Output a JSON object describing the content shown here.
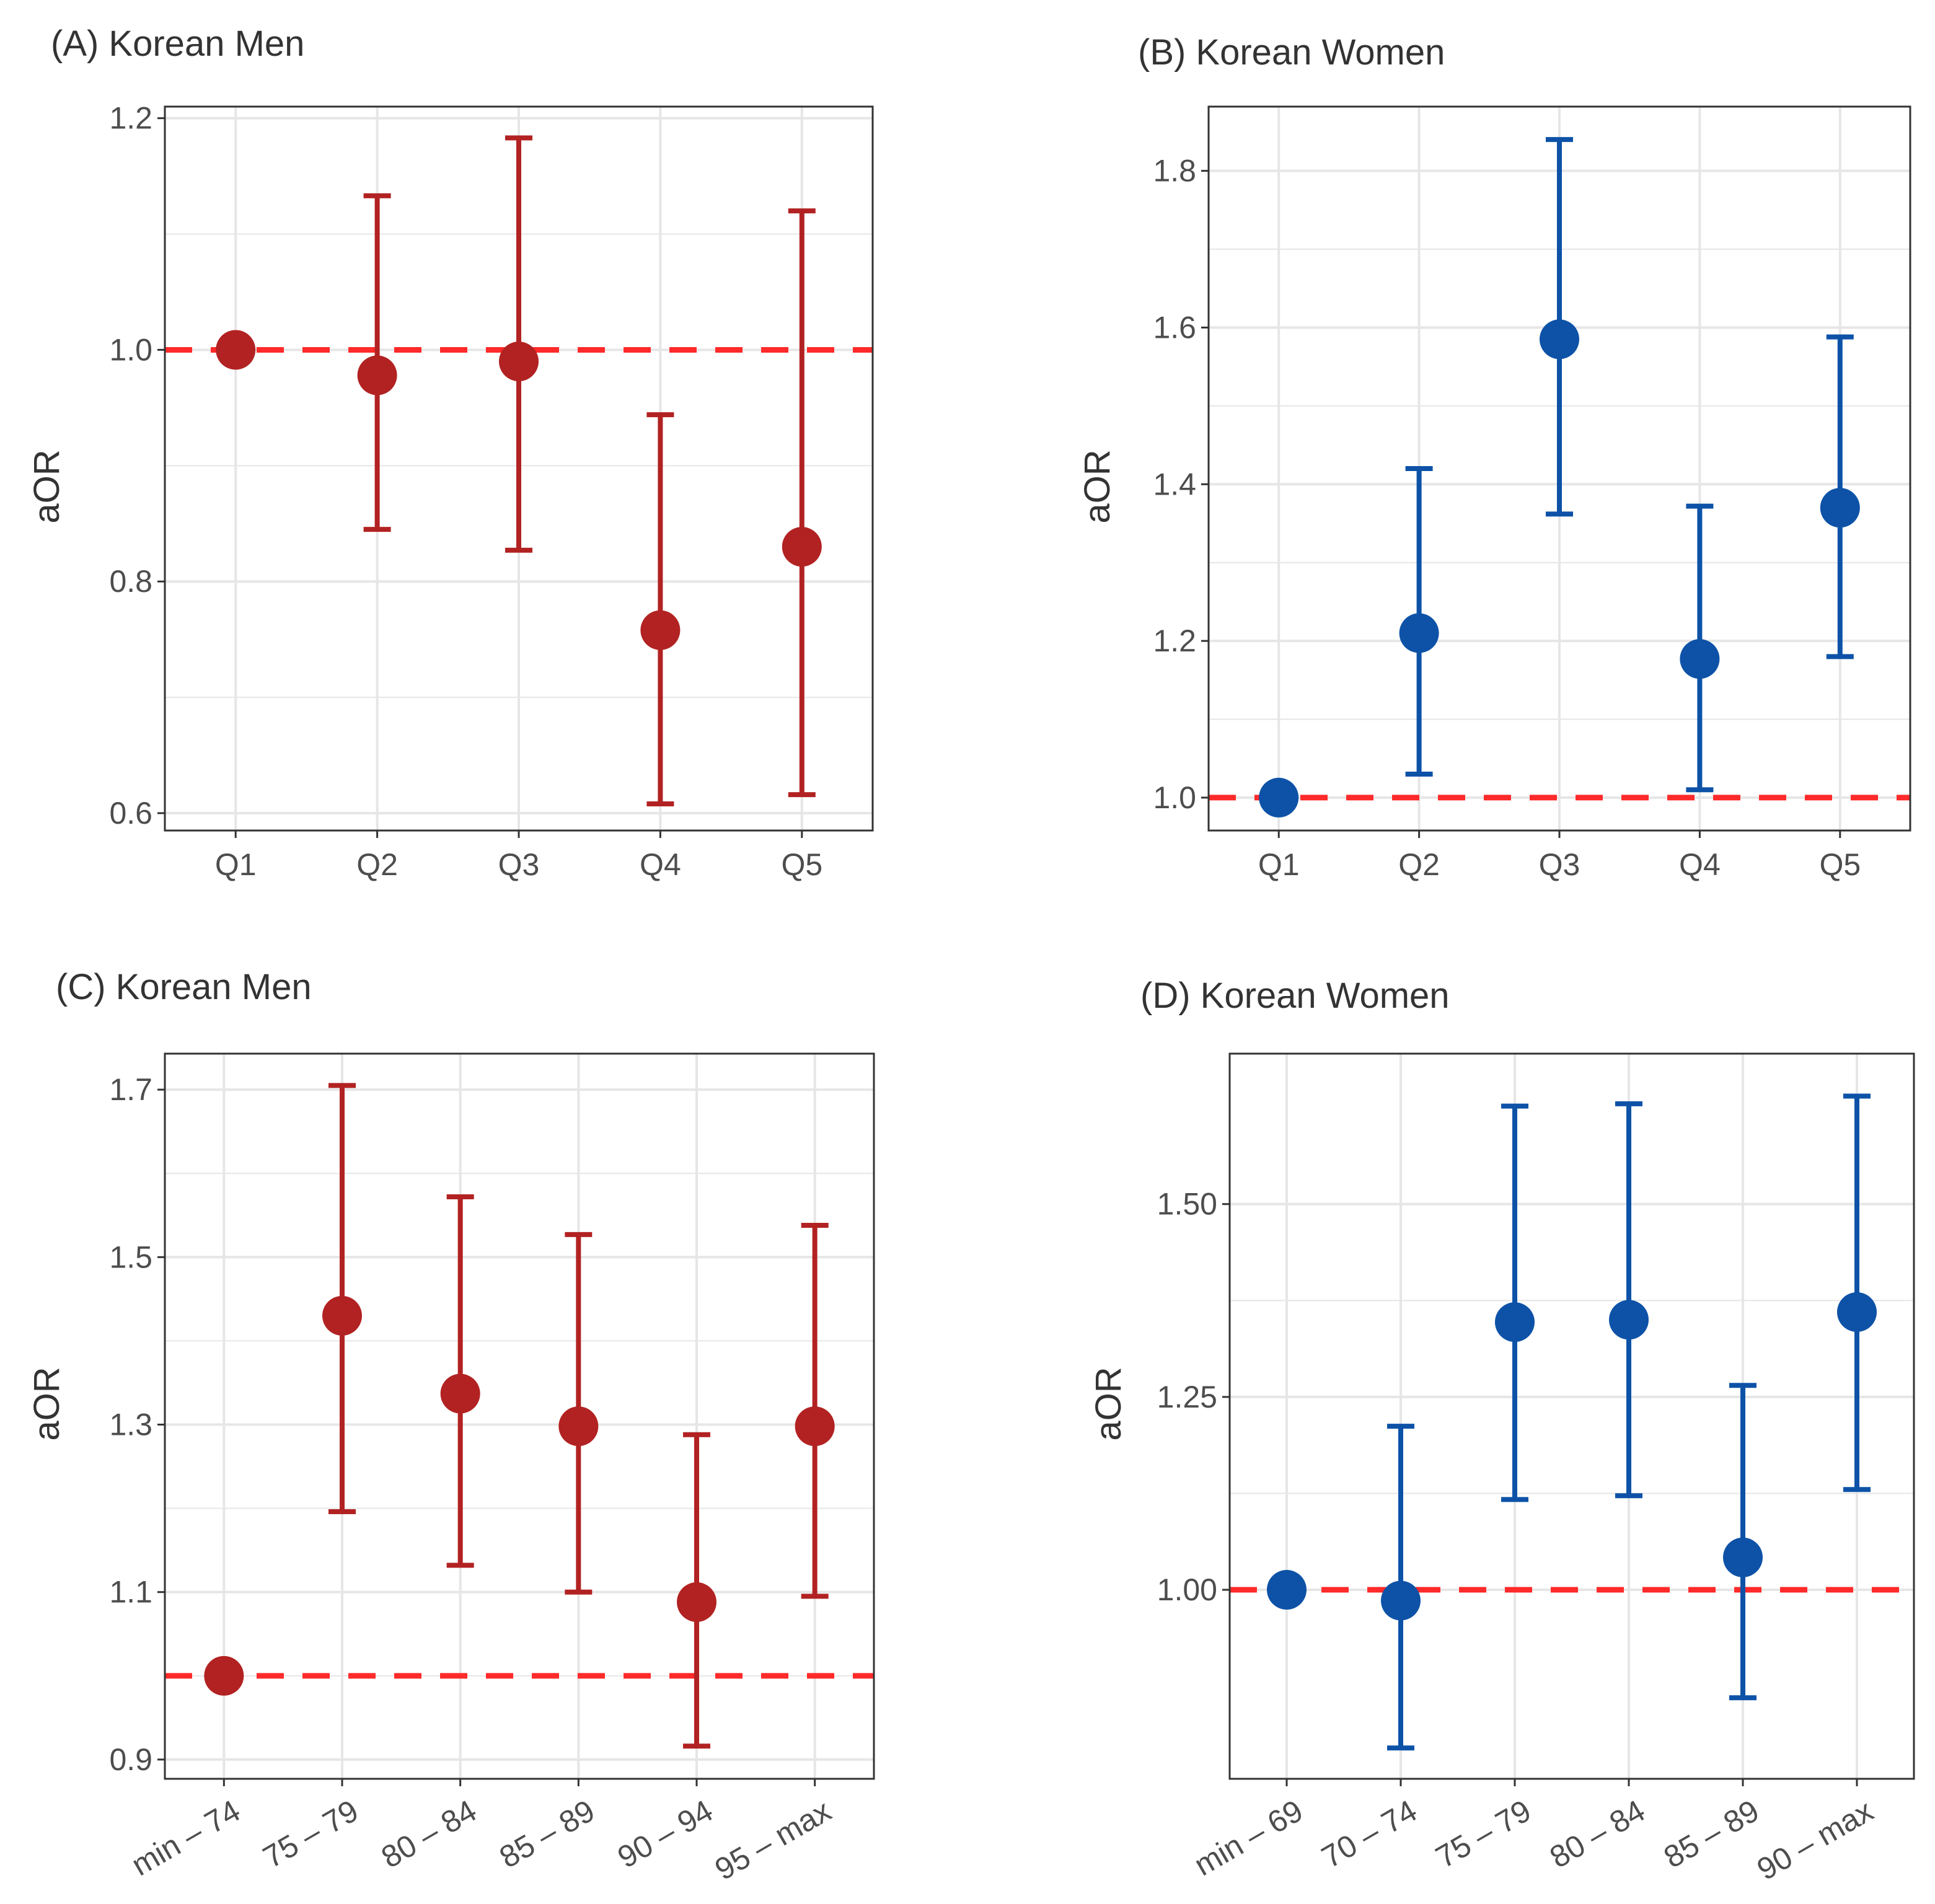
{
  "colors": {
    "men": "#b22222",
    "women": "#0d52a7",
    "reference_line": "#ff2a2a",
    "grid": "#e6e6e6",
    "panel_border": "#333333"
  },
  "chart_data": [
    {
      "type": "scatter",
      "subtype": "point-range",
      "title": "(A) Korean Men",
      "xlabel": "",
      "ylabel": "aOR",
      "categories": [
        "Q1",
        "Q2",
        "Q3",
        "Q4",
        "Q5"
      ],
      "values": [
        1.0,
        0.978,
        0.99,
        0.758,
        0.83
      ],
      "lower": [
        null,
        0.845,
        0.827,
        0.608,
        0.616
      ],
      "upper": [
        null,
        1.133,
        1.183,
        0.944,
        1.12
      ],
      "ylim": [
        0.585,
        1.21
      ],
      "yticks": [
        0.6,
        0.8,
        1.0,
        1.2
      ],
      "ytick_labels": [
        "0.6",
        "0.8",
        "1.0",
        "1.2"
      ],
      "reference_line": 1.0,
      "series_color": "men",
      "grid": true
    },
    {
      "type": "scatter",
      "subtype": "point-range",
      "title": "(B) Korean Women",
      "xlabel": "",
      "ylabel": "aOR",
      "categories": [
        "Q1",
        "Q2",
        "Q3",
        "Q4",
        "Q5"
      ],
      "values": [
        1.0,
        1.21,
        1.585,
        1.177,
        1.37
      ],
      "lower": [
        null,
        1.03,
        1.362,
        1.01,
        1.18
      ],
      "upper": [
        null,
        1.42,
        1.84,
        1.372,
        1.588
      ],
      "ylim": [
        0.958,
        1.882
      ],
      "yticks": [
        1.0,
        1.2,
        1.4,
        1.6,
        1.8
      ],
      "ytick_labels": [
        "1.0",
        "1.2",
        "1.4",
        "1.6",
        "1.8"
      ],
      "reference_line": 1.0,
      "series_color": "women",
      "grid": true
    },
    {
      "type": "scatter",
      "subtype": "point-range",
      "title": "(C) Korean Men",
      "xlabel": "",
      "ylabel": "aOR",
      "categories": [
        "min – 74",
        "75 – 79",
        "80 – 84",
        "85 – 89",
        "90 – 94",
        "95 – max"
      ],
      "values": [
        1.0,
        1.43,
        1.337,
        1.298,
        1.088,
        1.298
      ],
      "lower": [
        null,
        1.196,
        1.132,
        1.1,
        0.916,
        1.095
      ],
      "upper": [
        null,
        1.705,
        1.572,
        1.527,
        1.288,
        1.538
      ],
      "ylim": [
        0.877,
        1.743
      ],
      "yticks": [
        0.9,
        1.1,
        1.3,
        1.5,
        1.7
      ],
      "ytick_labels": [
        "0.9",
        "1.1",
        "1.3",
        "1.5",
        "1.7"
      ],
      "reference_line": 1.0,
      "series_color": "men",
      "grid": true,
      "rotate_x_labels": true
    },
    {
      "type": "scatter",
      "subtype": "point-range",
      "title": "(D) Korean Women",
      "xlabel": "",
      "ylabel": "aOR",
      "categories": [
        "min – 69",
        "70 – 74",
        "75 – 79",
        "80 – 84",
        "85 – 89",
        "90 – max"
      ],
      "values": [
        1.0,
        0.986,
        1.347,
        1.35,
        1.042,
        1.36
      ],
      "lower": [
        null,
        0.795,
        1.117,
        1.122,
        0.86,
        1.13
      ],
      "upper": [
        null,
        1.212,
        1.627,
        1.63,
        1.265,
        1.64
      ],
      "ylim": [
        0.755,
        1.695
      ],
      "yticks": [
        1.0,
        1.25,
        1.5
      ],
      "ytick_labels": [
        "1.00",
        "1.25",
        "1.50"
      ],
      "reference_line": 1.0,
      "series_color": "women",
      "grid": true,
      "rotate_x_labels": true
    }
  ]
}
